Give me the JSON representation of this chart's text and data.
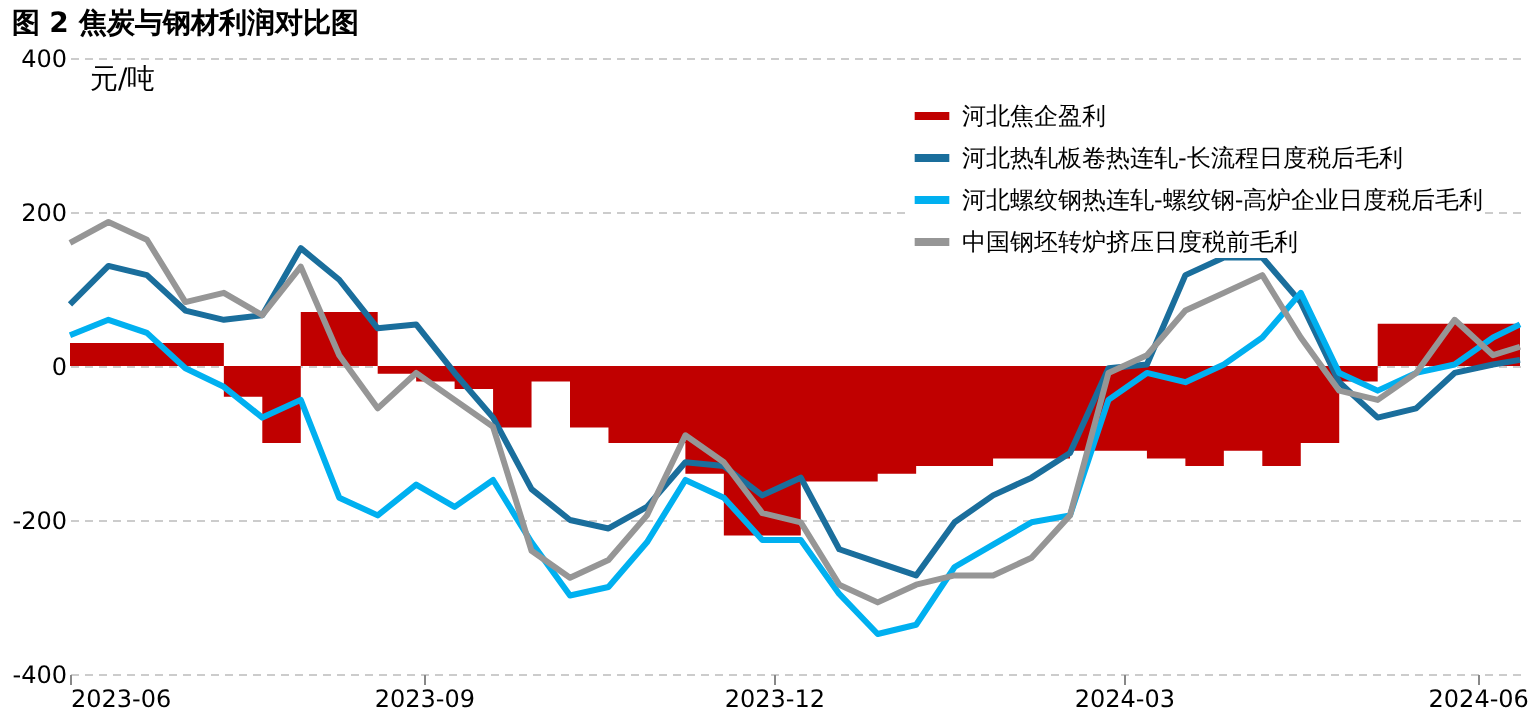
{
  "chart_data": {
    "type": "line",
    "title": "图 2  焦炭与钢材利润对比图",
    "ylabel": "元/吨",
    "x": [
      "2023-06-01",
      "2023-06-11",
      "2023-06-21",
      "2023-07-01",
      "2023-07-11",
      "2023-07-21",
      "2023-07-31",
      "2023-08-10",
      "2023-08-20",
      "2023-08-30",
      "2023-09-09",
      "2023-09-19",
      "2023-09-29",
      "2023-10-09",
      "2023-10-19",
      "2023-10-29",
      "2023-11-08",
      "2023-11-18",
      "2023-11-28",
      "2023-12-08",
      "2023-12-18",
      "2023-12-28",
      "2024-01-07",
      "2024-01-17",
      "2024-01-27",
      "2024-02-06",
      "2024-02-16",
      "2024-02-26",
      "2024-03-07",
      "2024-03-17",
      "2024-03-27",
      "2024-04-06",
      "2024-04-16",
      "2024-04-26",
      "2024-05-06",
      "2024-05-16",
      "2024-05-26",
      "2024-06-05",
      "2024-06-12"
    ],
    "series": [
      {
        "name": "河北焦企盈利",
        "type": "area",
        "color": "#c00000",
        "values": [
          30,
          30,
          30,
          30,
          -40,
          -100,
          70,
          70,
          -10,
          -20,
          -30,
          -80,
          -20,
          -80,
          -100,
          -100,
          -140,
          -220,
          -220,
          -150,
          -150,
          -140,
          -130,
          -130,
          -120,
          -120,
          -110,
          -110,
          -120,
          -130,
          -110,
          -130,
          -100,
          -20,
          55,
          55,
          55,
          55,
          55
        ]
      },
      {
        "name": "河北热轧板卷热连轧-长流程日度税后毛利",
        "color": "#1a6e9c",
        "values": [
          80,
          130,
          118,
          72,
          60,
          66,
          153,
          112,
          49,
          54,
          -9,
          -67,
          -160,
          -200,
          -211,
          -183,
          -125,
          -130,
          -168,
          -145,
          -238,
          -255,
          -272,
          -203,
          -168,
          -145,
          -113,
          -3,
          2,
          118,
          141,
          141,
          83,
          -21,
          -67,
          -55,
          -9,
          2,
          8
        ]
      },
      {
        "name": "河北螺纹钢热连轧-螺纹钢-高炉企业日度税后毛利",
        "color": "#00b0f0",
        "values": [
          40,
          60,
          43,
          -3,
          -27,
          -67,
          -44,
          -171,
          -194,
          -154,
          -183,
          -148,
          -229,
          -298,
          -287,
          -229,
          -148,
          -171,
          -226,
          -226,
          -296,
          -348,
          -336,
          -261,
          -232,
          -203,
          -194,
          -44,
          -9,
          -21,
          2,
          37,
          95,
          -9,
          -32,
          -9,
          2,
          37,
          54
        ]
      },
      {
        "name": "中国钢坯转炉挤压日度税前毛利",
        "color": "#969696",
        "values": [
          160,
          187,
          164,
          83,
          95,
          66,
          129,
          14,
          -55,
          -9,
          -44,
          -79,
          -240,
          -275,
          -252,
          -194,
          -90,
          -125,
          -191,
          -203,
          -284,
          -307,
          -284,
          -272,
          -272,
          -249,
          -194,
          -9,
          14,
          72,
          95,
          118,
          37,
          -32,
          -44,
          -9,
          60,
          14,
          25
        ]
      }
    ],
    "xlim": [
      "2023-06-01",
      "2024-06-12"
    ],
    "xticks": [
      {
        "value": "2023-06-01",
        "label": "2023-06"
      },
      {
        "value": "2023-09-01",
        "label": "2023-09"
      },
      {
        "value": "2023-12-01",
        "label": "2023-12"
      },
      {
        "value": "2024-03-01",
        "label": "2024-03"
      },
      {
        "value": "2024-06-01",
        "label": "2024-06"
      }
    ],
    "ylim": [
      -400,
      400
    ],
    "yticks": [
      -400,
      -200,
      0,
      200,
      400
    ],
    "grid": "y",
    "legend": "top right",
    "line_style": "solid",
    "marker": "none"
  }
}
